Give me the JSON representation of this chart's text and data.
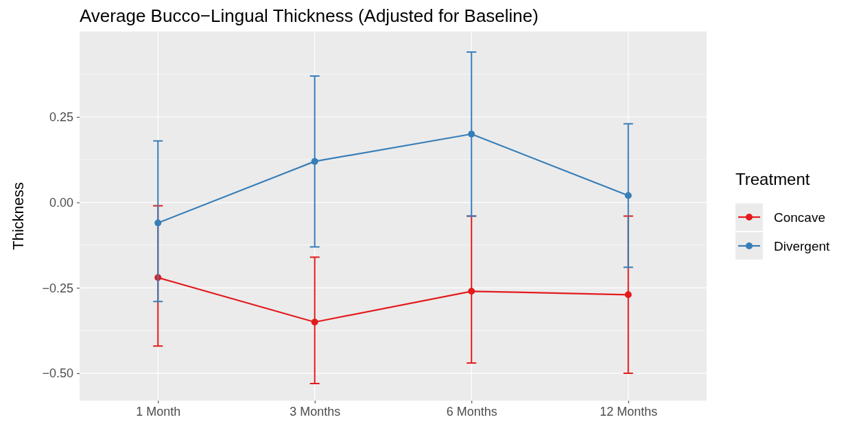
{
  "chart_data": {
    "type": "line",
    "title": "Average Bucco−Lingual Thickness (Adjusted for Baseline)",
    "ylabel": "Thickness",
    "legend_title": "Treatment",
    "categories": [
      "1 Month",
      "3 Months",
      "6 Months",
      "12 Months"
    ],
    "series": [
      {
        "name": "Concave",
        "color": "#e41a1c",
        "values": [
          -0.22,
          -0.35,
          -0.26,
          -0.27
        ],
        "errors": [
          [
            -0.42,
            -0.01
          ],
          [
            -0.53,
            -0.16
          ],
          [
            -0.47,
            -0.04
          ],
          [
            -0.5,
            -0.04
          ]
        ]
      },
      {
        "name": "Divergent",
        "color": "#377eb8",
        "values": [
          -0.06,
          0.12,
          0.2,
          0.02
        ],
        "errors": [
          [
            -0.29,
            0.18
          ],
          [
            -0.13,
            0.37
          ],
          [
            -0.04,
            0.44
          ],
          [
            -0.19,
            0.23
          ]
        ]
      }
    ],
    "ylim": [
      -0.58,
      0.5
    ],
    "yticks": [
      {
        "value": 0.25,
        "label": "0.25"
      },
      {
        "value": 0,
        "label": "0.00"
      },
      {
        "value": -0.25,
        "label": "−0.25"
      },
      {
        "value": -0.5,
        "label": "−0.50"
      }
    ],
    "grid": true,
    "legend": "right",
    "marker": "circle",
    "line_style": "solid"
  }
}
